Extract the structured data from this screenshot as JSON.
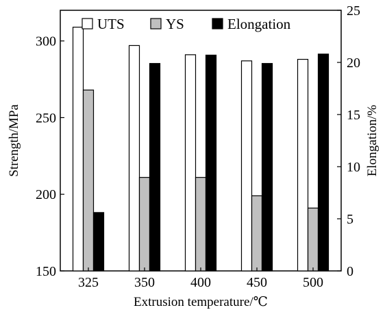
{
  "chart_data": {
    "type": "bar",
    "xlabel": "Extrusion temperature/℃",
    "ylabel_left": "Strength/MPa",
    "ylabel_right": "Elongation/%",
    "categories": [
      "325",
      "350",
      "400",
      "450",
      "500"
    ],
    "y_left": {
      "lim": [
        150,
        320
      ],
      "ticks": [
        150,
        200,
        250,
        300
      ]
    },
    "y_right": {
      "lim": [
        0,
        25
      ],
      "ticks": [
        0,
        5,
        10,
        15,
        20,
        25
      ]
    },
    "series": [
      {
        "name": "UTS",
        "axis": "left",
        "fill": "#ffffff",
        "values": [
          309,
          297,
          291,
          287,
          288
        ]
      },
      {
        "name": "YS",
        "axis": "left",
        "fill": "#c0c0c0",
        "values": [
          268,
          211,
          211,
          199,
          191
        ]
      },
      {
        "name": "Elongation",
        "axis": "right",
        "fill": "#000000",
        "values": [
          5.6,
          19.9,
          20.7,
          19.9,
          20.8
        ]
      }
    ],
    "legend_position": "top",
    "grid": false
  }
}
